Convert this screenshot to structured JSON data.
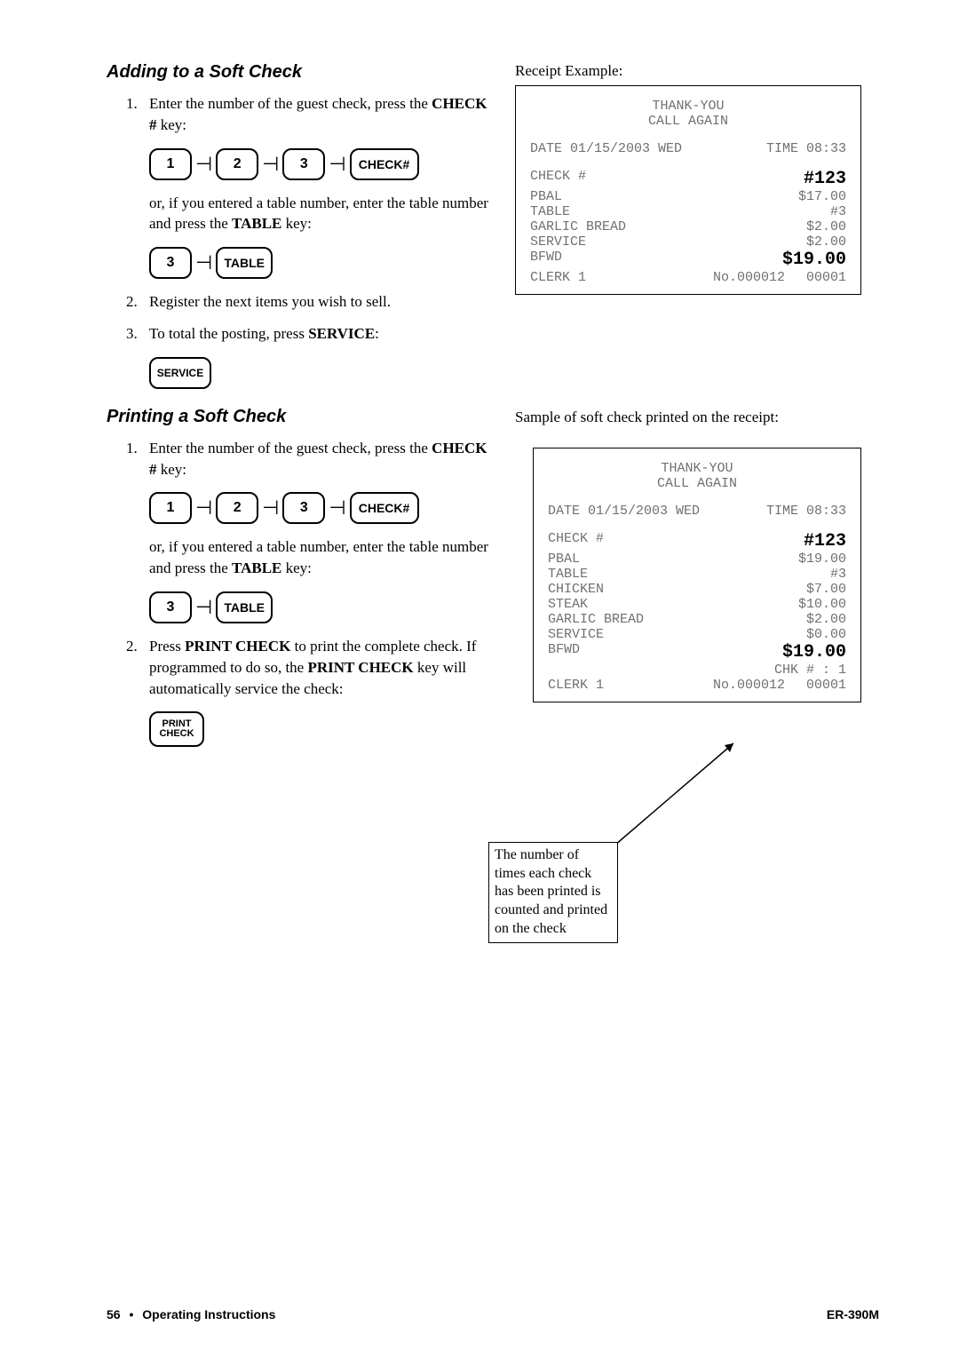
{
  "section1": {
    "title": "Adding to a Soft Check",
    "items": [
      {
        "num": "1.",
        "text_a": "Enter the number of the guest check, press the ",
        "bold_a": "CHECK #",
        "text_b": " key:"
      },
      {
        "num": "2.",
        "text_plain": "Register the next items you wish to sell."
      },
      {
        "num": "3.",
        "text_a": "To total the posting, press ",
        "bold_a": "SERVICE",
        "text_b": ":"
      }
    ],
    "or_para_a": "or, if you entered a table number, enter the table number and press the ",
    "or_para_bold": "TABLE",
    "or_para_b": " key:"
  },
  "section2": {
    "title": "Printing a Soft Check",
    "item1": {
      "num": "1.",
      "text_a": "Enter the number of the guest check, press the ",
      "bold_a": "CHECK #",
      "text_b": " key:"
    },
    "or_para_a": "or, if you entered a table number, enter the table number and press the ",
    "or_para_bold": "TABLE",
    "or_para_b": " key:",
    "item2": {
      "num": "2.",
      "text_a": "Press ",
      "bold_a": "PRINT CHECK",
      "text_b": " to print the complete check.    If programmed to do so, the ",
      "bold_b": "PRINT CHECK",
      "text_c": " key will automatically service the check:"
    }
  },
  "keys": {
    "k1": "1",
    "k2": "2",
    "k3": "3",
    "check": "CHECK#",
    "table": "TABLE",
    "service": "SERVICE",
    "print_line1": "PRINT",
    "print_line2": "CHECK"
  },
  "receipt1": {
    "label": "Receipt Example:",
    "header1": "THANK-YOU",
    "header2": "CALL AGAIN",
    "date_left": "DATE 01/15/2003 WED",
    "date_right": "TIME 08:33",
    "lines": [
      {
        "l": "CHECK #",
        "r": "#123",
        "big": true
      },
      {
        "l": "PBAL",
        "r": "$17.00"
      },
      {
        "l": "TABLE",
        "r": "#3"
      },
      {
        "l": "GARLIC BREAD",
        "r": "$2.00"
      },
      {
        "l": "SERVICE",
        "r": "$2.00"
      },
      {
        "l": "BFWD",
        "r": "$19.00",
        "big": true
      }
    ],
    "clerk_l": "CLERK 1",
    "clerk_m": "No.000012",
    "clerk_r": "00001"
  },
  "receipt2": {
    "label": "Sample of soft check printed on the receipt:",
    "header1": "THANK-YOU",
    "header2": "CALL AGAIN",
    "date_left": "DATE 01/15/2003 WED",
    "date_right": "TIME 08:33",
    "lines": [
      {
        "l": "CHECK #",
        "r": "#123",
        "big": true
      },
      {
        "l": "PBAL",
        "r": "$19.00"
      },
      {
        "l": "TABLE",
        "r": "#3"
      },
      {
        "l": "CHICKEN",
        "r": "$7.00"
      },
      {
        "l": "STEAK",
        "r": "$10.00"
      },
      {
        "l": "GARLIC BREAD",
        "r": "$2.00"
      },
      {
        "l": "SERVICE",
        "r": "$0.00"
      },
      {
        "l": "BFWD",
        "r": "$19.00",
        "big": true
      }
    ],
    "chk_line": "CHK # : 1",
    "clerk_l": "CLERK 1",
    "clerk_m": "No.000012",
    "clerk_r": "00001"
  },
  "callout": "The number of times each check has been printed is counted and printed on the check",
  "footer": {
    "page": "56",
    "left": "Operating Instructions",
    "right": "ER-390M"
  }
}
